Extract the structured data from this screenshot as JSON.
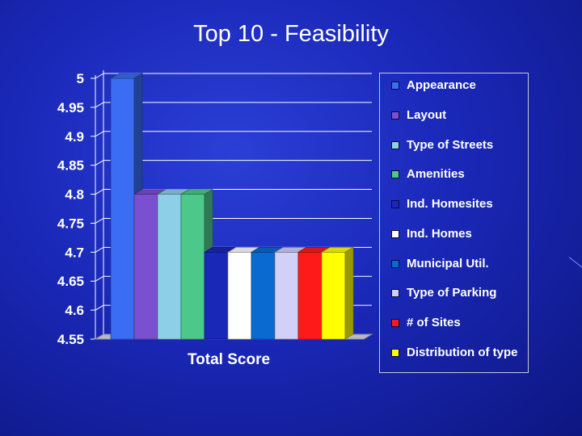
{
  "slide": {
    "title": "Top 10 - Feasibility"
  },
  "colors": {
    "background": "#1a28b8",
    "gridline": "#ffffff",
    "floor": "#b8b8c8"
  },
  "chart_data": {
    "type": "bar",
    "title": "Top 10 - Feasibility",
    "categories": [
      "Total Score"
    ],
    "ylim": [
      4.55,
      5
    ],
    "yticks": [
      "5",
      "4.95",
      "4.9",
      "4.85",
      "4.8",
      "4.75",
      "4.7",
      "4.65",
      "4.6",
      "4.55"
    ],
    "grid": true,
    "legend_position": "right",
    "series": [
      {
        "name": "Appearance",
        "values": [
          5.0
        ],
        "color": "#3a6cf4"
      },
      {
        "name": "Layout",
        "values": [
          4.8
        ],
        "color": "#7a4fd0"
      },
      {
        "name": "Type of Streets",
        "values": [
          4.8
        ],
        "color": "#8ecfe8"
      },
      {
        "name": "Amenities",
        "values": [
          4.8
        ],
        "color": "#4cc98a"
      },
      {
        "name": "Ind. Homesites",
        "values": [
          4.7
        ],
        "color": "#1a28b8"
      },
      {
        "name": "Ind. Homes",
        "values": [
          4.7
        ],
        "color": "#ffffff"
      },
      {
        "name": "Municipal Util.",
        "values": [
          4.7
        ],
        "color": "#0a6ad0"
      },
      {
        "name": "Type of Parking",
        "values": [
          4.7
        ],
        "color": "#d0d0f8"
      },
      {
        "name": "# of Sites",
        "values": [
          4.7
        ],
        "color": "#ff1a1a"
      },
      {
        "name": "Distribution of type",
        "values": [
          4.7
        ],
        "color": "#ffff00"
      }
    ]
  }
}
